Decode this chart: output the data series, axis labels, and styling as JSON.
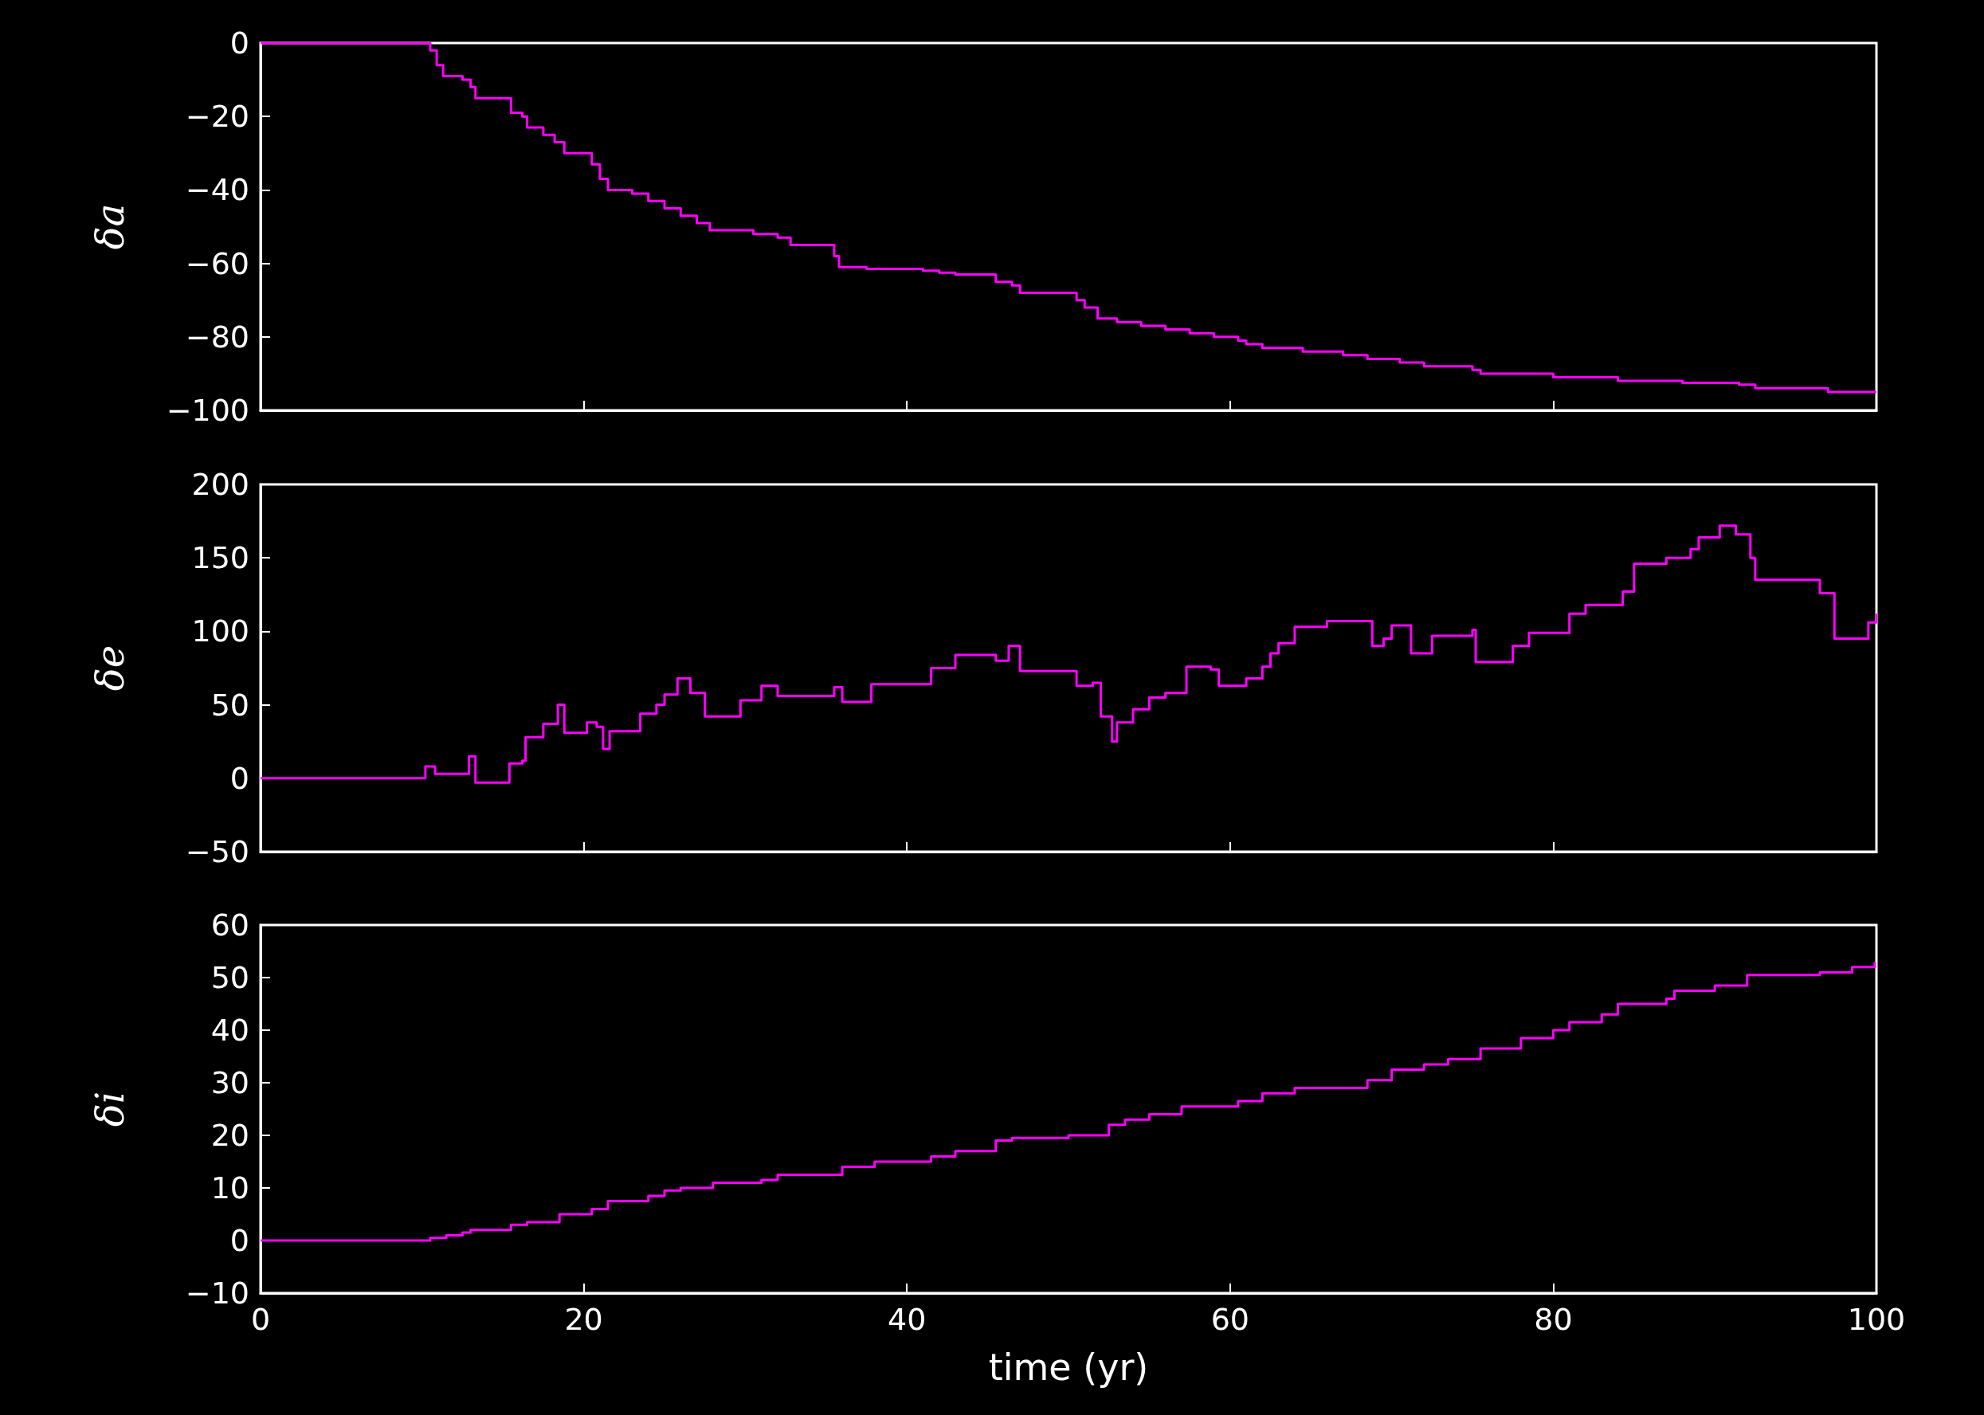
{
  "chart_data": [
    {
      "type": "step",
      "ylabel": "δa",
      "xlim": [
        0,
        100
      ],
      "xticks": [
        0,
        20,
        40,
        60,
        80,
        100
      ],
      "ylim": [
        -100,
        0
      ],
      "yticks": [
        {
          "value": -100,
          "label": "−100"
        },
        {
          "value": -80,
          "label": "−80"
        },
        {
          "value": -60,
          "label": "−60"
        },
        {
          "value": -40,
          "label": "−40"
        },
        {
          "value": -20,
          "label": "−20"
        },
        0
      ],
      "tick_labels": "y",
      "x": [
        0,
        10.5,
        10.9,
        11.3,
        12.5,
        13.0,
        13.3,
        15.5,
        16.2,
        16.5,
        17.5,
        18.2,
        18.8,
        20.5,
        21,
        21.5,
        23,
        24,
        25,
        26,
        27,
        27.8,
        30.5,
        32,
        32.8,
        35.5,
        35.8,
        37.5,
        41,
        42,
        43,
        45.5,
        46.5,
        47,
        50.5,
        51,
        51.8,
        53,
        54.5,
        56,
        57.5,
        59,
        60.5,
        61,
        62,
        64.5,
        67,
        68.5,
        70.5,
        72,
        75,
        75.5,
        80,
        84,
        88,
        91.5,
        92.5,
        97,
        100
      ],
      "series": [
        {
          "color": "#ff00ff",
          "values": [
            0,
            -2,
            -6,
            -9,
            -10,
            -12,
            -15,
            -19,
            -20,
            -23,
            -25,
            -27,
            -30,
            -33,
            -37,
            -40,
            -41,
            -43,
            -45,
            -47,
            -49,
            -51,
            -52,
            -53,
            -55,
            -58,
            -61,
            -61.5,
            -62,
            -62.5,
            -63,
            -65,
            -66,
            -68,
            -70,
            -72,
            -75,
            -76,
            -77,
            -78,
            -79,
            -80,
            -81,
            -82,
            -83,
            -84,
            -85,
            -86,
            -87,
            -88,
            -89,
            -90,
            -91,
            -92,
            -92.5,
            -93,
            -94,
            -95,
            -95
          ]
        }
      ]
    },
    {
      "type": "step",
      "ylabel": "δe",
      "xlim": [
        0,
        100
      ],
      "xticks": [
        0,
        20,
        40,
        60,
        80,
        100
      ],
      "ylim": [
        -50,
        200
      ],
      "yticks": [
        {
          "value": -50,
          "label": "−50"
        },
        0,
        50,
        100,
        150,
        200
      ],
      "tick_labels": "y",
      "x": [
        0,
        10.2,
        10.8,
        12,
        12.6,
        12.9,
        13.3,
        15.4,
        16.2,
        16.4,
        17.5,
        18.4,
        18.8,
        20.2,
        20.8,
        21.2,
        21.6,
        23.5,
        24.5,
        25,
        25.8,
        26.6,
        27.5,
        29.7,
        31,
        32,
        35.5,
        36,
        37.8,
        41.5,
        43,
        45.5,
        46.3,
        47,
        50.5,
        51.5,
        52,
        52.7,
        53,
        54,
        55,
        56,
        57.3,
        58.8,
        59.3,
        61,
        62,
        62.5,
        63,
        64,
        66,
        68.8,
        69.5,
        70,
        71.2,
        72.5,
        75,
        75.2,
        77.5,
        78.5,
        81,
        82,
        84.3,
        85,
        87,
        88.5,
        89,
        90.3,
        91.3,
        92.2,
        92.5,
        96,
        96.5,
        97.4,
        99.5,
        100
      ],
      "series": [
        {
          "color": "#ff00ff",
          "values": [
            0,
            8,
            3,
            3,
            3,
            15,
            -3,
            10,
            12,
            28,
            37,
            50,
            31,
            38,
            35,
            20,
            32,
            44,
            50,
            57,
            68,
            58,
            42,
            53,
            63,
            56,
            62,
            52,
            64,
            75,
            84,
            80,
            90,
            73,
            63,
            65,
            42,
            25,
            38,
            47,
            55,
            58,
            76,
            74,
            63,
            68,
            76,
            85,
            92,
            103,
            107,
            90,
            95,
            104,
            85,
            97,
            101,
            79,
            90,
            99,
            112,
            118,
            127,
            146,
            150,
            156,
            164,
            172,
            166,
            150,
            135,
            135,
            126,
            95,
            106,
            112
          ]
        }
      ]
    },
    {
      "type": "step",
      "ylabel": "δi",
      "xlabel": "time (yr)",
      "xlim": [
        0,
        100
      ],
      "xticks": [
        0,
        20,
        40,
        60,
        80,
        100
      ],
      "ylim": [
        -10,
        60
      ],
      "yticks": [
        {
          "value": -10,
          "label": "−10"
        },
        0,
        10,
        20,
        30,
        40,
        50,
        60
      ],
      "x": [
        0,
        10.5,
        11.5,
        12.5,
        13,
        15.5,
        16.5,
        18.5,
        20.5,
        21.5,
        24,
        25,
        26,
        28,
        31,
        32,
        36,
        38,
        41.5,
        43,
        45.5,
        46.5,
        50,
        52.5,
        53.5,
        55,
        57,
        60.5,
        62,
        64,
        68.5,
        70,
        72,
        73.5,
        75.5,
        78,
        80,
        81,
        83,
        84,
        87,
        87.5,
        90,
        92,
        96.5,
        98.5,
        99.9
      ],
      "series": [
        {
          "color": "#ff00ff",
          "values": [
            0,
            0.5,
            1,
            1.5,
            2,
            3,
            3.5,
            5,
            6,
            7.5,
            8.5,
            9.5,
            10,
            11,
            11.5,
            12.5,
            14,
            15,
            16,
            17,
            19,
            19.5,
            20,
            22,
            23,
            24,
            25.5,
            26.5,
            28,
            29,
            30.5,
            32.5,
            33.5,
            34.5,
            36.5,
            38.5,
            40,
            41.5,
            43,
            45,
            46,
            47.5,
            48.5,
            50.5,
            51,
            52,
            53
          ]
        }
      ]
    }
  ]
}
